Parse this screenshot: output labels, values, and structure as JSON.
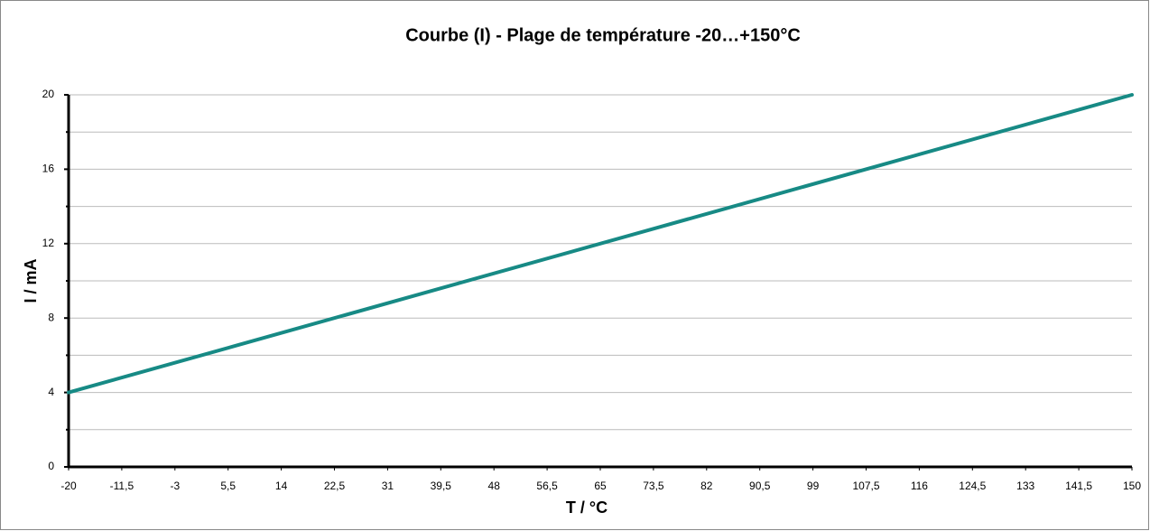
{
  "chart_data": {
    "type": "line",
    "title": "Courbe (I) - Plage de température -20…+150°C",
    "x_label": "T / °C",
    "y_label": "I / mA",
    "x": [
      -20,
      150
    ],
    "series": [
      {
        "name": "I",
        "color": "#178a85",
        "values": [
          4,
          20
        ]
      }
    ],
    "xlim": [
      -20,
      150
    ],
    "xticks": [
      -20,
      {
        "value": -11.5,
        "label": "-11,5"
      },
      -3,
      {
        "value": 5.5,
        "label": "5,5"
      },
      14,
      {
        "value": 22.5,
        "label": "22,5"
      },
      31,
      {
        "value": 39.5,
        "label": "39,5"
      },
      48,
      {
        "value": 56.5,
        "label": "56,5"
      },
      65,
      {
        "value": 73.5,
        "label": "73,5"
      },
      82,
      {
        "value": 90.5,
        "label": "90,5"
      },
      99,
      {
        "value": 107.5,
        "label": "107,5"
      },
      116,
      {
        "value": 124.5,
        "label": "124,5"
      },
      133,
      {
        "value": 141.5,
        "label": "141,5"
      },
      150
    ],
    "ylim": [
      0,
      20
    ],
    "yticks": [
      0,
      4,
      8,
      12,
      16,
      20
    ],
    "minor_yticks": [
      2,
      6,
      10,
      14,
      18
    ],
    "grid": true
  }
}
